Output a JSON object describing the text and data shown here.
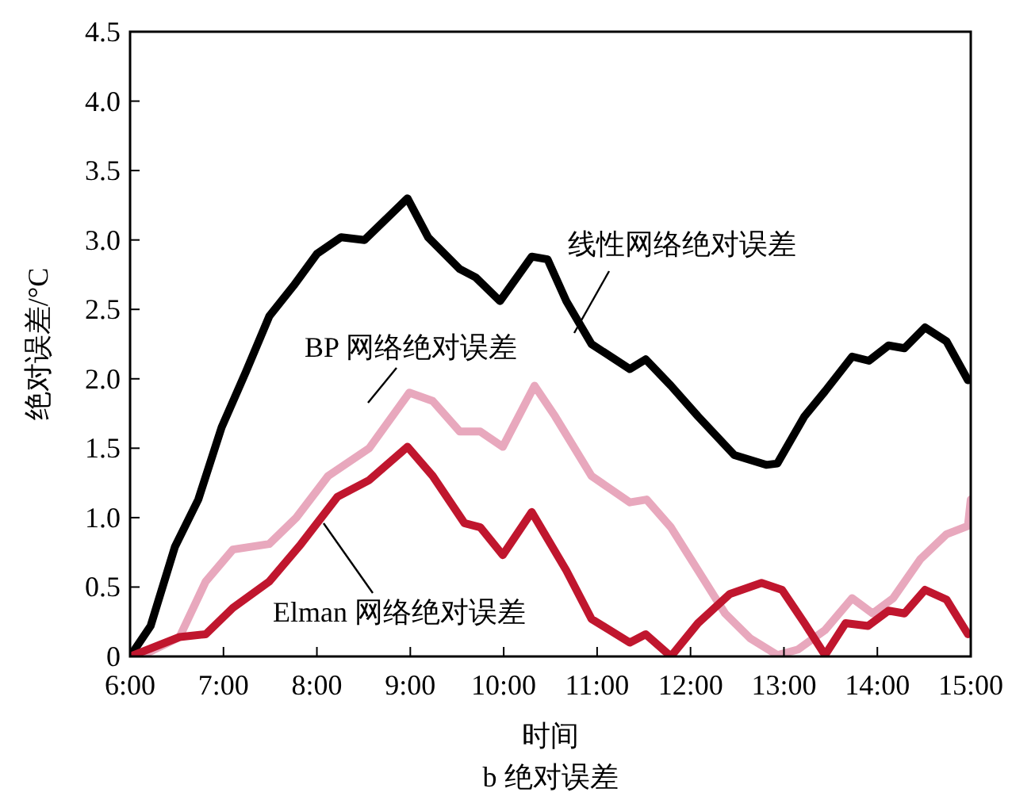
{
  "chart_data": {
    "type": "line",
    "xlabel": "时间",
    "ylabel": "绝对误差/°C",
    "annotations": [
      "b 绝对误差"
    ],
    "xlim": [
      6,
      15
    ],
    "ylim": [
      0,
      4.5
    ],
    "xticks": [
      {
        "value": 6,
        "label": "6:00"
      },
      {
        "value": 7,
        "label": "7:00"
      },
      {
        "value": 8,
        "label": "8:00"
      },
      {
        "value": 9,
        "label": "9:00"
      },
      {
        "value": 10,
        "label": "10:00"
      },
      {
        "value": 11,
        "label": "11:00"
      },
      {
        "value": 12,
        "label": "12:00"
      },
      {
        "value": 13,
        "label": "13:00"
      },
      {
        "value": 14,
        "label": "14:00"
      },
      {
        "value": 15,
        "label": "15:00"
      }
    ],
    "yticks": [
      {
        "value": 0,
        "label": "0"
      },
      {
        "value": 0.5,
        "label": "0.5"
      },
      {
        "value": 1,
        "label": "1.0"
      },
      {
        "value": 1.5,
        "label": "1.5"
      },
      {
        "value": 2,
        "label": "2.0"
      },
      {
        "value": 2.5,
        "label": "2.5"
      },
      {
        "value": 3,
        "label": "3.0"
      },
      {
        "value": 3.5,
        "label": "3.5"
      },
      {
        "value": 4,
        "label": "4.0"
      },
      {
        "value": 4.5,
        "label": "4.5"
      }
    ],
    "grid": false,
    "line_style": "solid",
    "series": [
      {
        "name": "线性网络绝对误差",
        "color": "#000000",
        "x": [
          6,
          6.22,
          6.48,
          6.73,
          6.98,
          7.24,
          7.49,
          7.75,
          8.0,
          8.26,
          8.51,
          8.97,
          9.19,
          9.53,
          9.7,
          9.96,
          10.3,
          10.47,
          10.67,
          10.94,
          11.35,
          11.52,
          11.79,
          12.08,
          12.47,
          12.81,
          12.93,
          13.22,
          13.44,
          13.73,
          13.91,
          14.12,
          14.29,
          14.51,
          14.74,
          14.97
        ],
        "values": [
          0,
          0.22,
          0.79,
          1.13,
          1.65,
          2.05,
          2.45,
          2.67,
          2.9,
          3.02,
          3.0,
          3.3,
          3.02,
          2.79,
          2.73,
          2.56,
          2.88,
          2.86,
          2.56,
          2.25,
          2.07,
          2.14,
          1.95,
          1.73,
          1.45,
          1.38,
          1.39,
          1.73,
          1.91,
          2.16,
          2.13,
          2.24,
          2.22,
          2.37,
          2.27,
          1.99
        ]
      },
      {
        "name": "BP 网络绝对误差",
        "color": "#e8a8bd",
        "x": [
          6.14,
          6.53,
          6.81,
          7.1,
          7.49,
          7.78,
          8.12,
          8.56,
          8.99,
          9.24,
          9.53,
          9.75,
          9.99,
          10.33,
          10.55,
          10.94,
          11.35,
          11.53,
          11.79,
          12.08,
          12.37,
          12.64,
          12.93,
          13.15,
          13.44,
          13.73,
          13.95,
          14.17,
          14.46,
          14.74,
          14.97,
          15.0
        ],
        "values": [
          0.01,
          0.14,
          0.54,
          0.77,
          0.81,
          1.0,
          1.3,
          1.5,
          1.9,
          1.84,
          1.62,
          1.62,
          1.51,
          1.95,
          1.73,
          1.3,
          1.11,
          1.13,
          0.93,
          0.62,
          0.31,
          0.13,
          0.01,
          0.05,
          0.19,
          0.42,
          0.31,
          0.42,
          0.7,
          0.88,
          0.94,
          1.13
        ]
      },
      {
        "name": "Elman 网络绝对误差",
        "color": "#c0162e",
        "x": [
          6.0,
          6.53,
          6.81,
          7.1,
          7.49,
          7.83,
          8.22,
          8.56,
          8.97,
          9.24,
          9.58,
          9.75,
          9.99,
          10.3,
          10.67,
          10.94,
          11.35,
          11.52,
          11.79,
          12.08,
          12.42,
          12.76,
          12.98,
          13.22,
          13.44,
          13.66,
          13.9,
          14.12,
          14.29,
          14.51,
          14.74,
          14.97
        ],
        "values": [
          0,
          0.14,
          0.16,
          0.35,
          0.54,
          0.81,
          1.15,
          1.27,
          1.51,
          1.3,
          0.96,
          0.93,
          0.73,
          1.04,
          0.62,
          0.27,
          0.1,
          0.16,
          0,
          0.24,
          0.45,
          0.53,
          0.48,
          0.24,
          0.01,
          0.24,
          0.22,
          0.33,
          0.31,
          0.48,
          0.41,
          0.16
        ]
      }
    ]
  }
}
